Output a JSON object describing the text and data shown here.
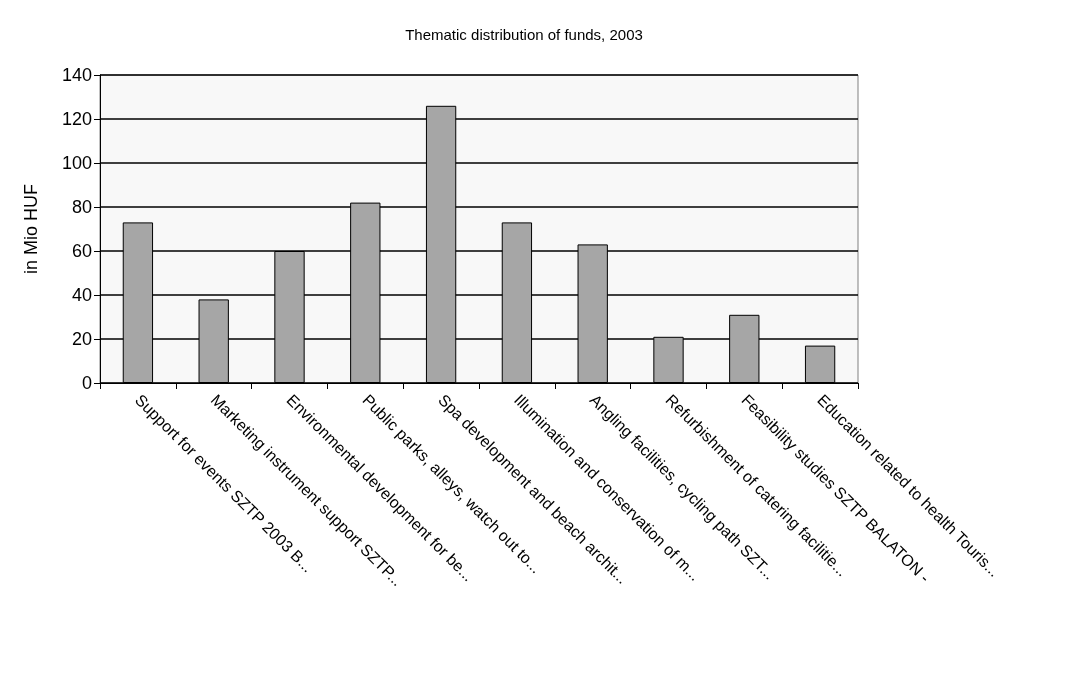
{
  "chart_data": {
    "type": "bar",
    "title": "Thematic distribution of funds, 2003",
    "ylabel": "in Mio HUF",
    "categories": [
      "Support for events SZTP 2003 B...",
      "Marketing instrument support SZTP...",
      "Environmental development for be...",
      "Public parks, alleys, watch out to...",
      "Spa development and beach archit...",
      "Illumination and conservation of m...",
      "Angling facilities, cycling path SZT...",
      "Refurbishment of catering facilitie...",
      "Feasibility studies SZTP BALATON -",
      "Education related to health Touris..."
    ],
    "values": [
      73,
      38,
      60,
      82,
      126,
      73,
      63,
      21,
      31,
      17
    ],
    "color": "#a6a6a6",
    "ylim": [
      0,
      140
    ],
    "yticks": [
      0,
      20,
      40,
      60,
      80,
      100,
      120,
      140
    ],
    "grid": "y"
  }
}
